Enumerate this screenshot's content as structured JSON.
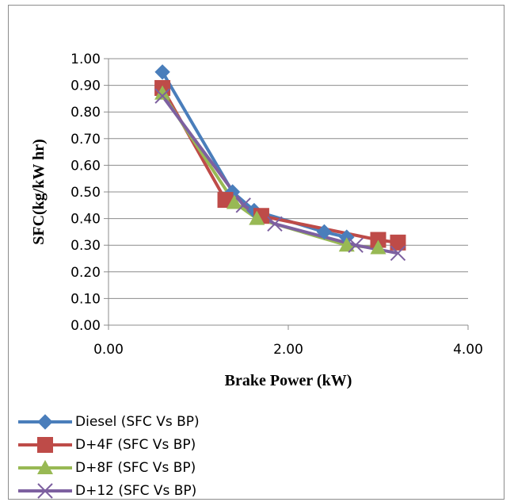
{
  "chart_data": {
    "type": "line",
    "title": "",
    "xlabel": "Brake Power (kW)",
    "ylabel": "SFC(kg/kW hr)",
    "xlim": [
      0,
      4
    ],
    "ylim": [
      0,
      1
    ],
    "x_ticks": [
      "0.00",
      "2.00",
      "4.00"
    ],
    "y_ticks": [
      "0.00",
      "0.10",
      "0.20",
      "0.30",
      "0.40",
      "0.50",
      "0.60",
      "0.70",
      "0.80",
      "0.90",
      "1.00"
    ],
    "grid": "horizontal",
    "legend_position": "bottom",
    "series": [
      {
        "name": "Diesel (SFC Vs BP)",
        "color": "#4a7ebb",
        "marker": "diamond",
        "x": [
          0.6,
          1.38,
          1.62,
          2.4,
          2.65
        ],
        "y": [
          0.95,
          0.5,
          0.43,
          0.35,
          0.33
        ]
      },
      {
        "name": "D+4F (SFC Vs BP)",
        "color": "#be4b48",
        "marker": "square",
        "x": [
          0.6,
          1.3,
          1.7,
          3.0,
          3.22
        ],
        "y": [
          0.89,
          0.47,
          0.41,
          0.32,
          0.31
        ]
      },
      {
        "name": "D+8F (SFC Vs BP)",
        "color": "#98b954",
        "marker": "triangle",
        "x": [
          0.6,
          1.4,
          1.65,
          2.65,
          3.0
        ],
        "y": [
          0.87,
          0.46,
          0.4,
          0.3,
          0.29
        ]
      },
      {
        "name": "D+12 (SFC Vs BP)",
        "color": "#7d60a0",
        "marker": "x",
        "x": [
          0.6,
          1.5,
          1.85,
          2.75,
          3.22
        ],
        "y": [
          0.86,
          0.45,
          0.38,
          0.3,
          0.27
        ]
      }
    ]
  }
}
